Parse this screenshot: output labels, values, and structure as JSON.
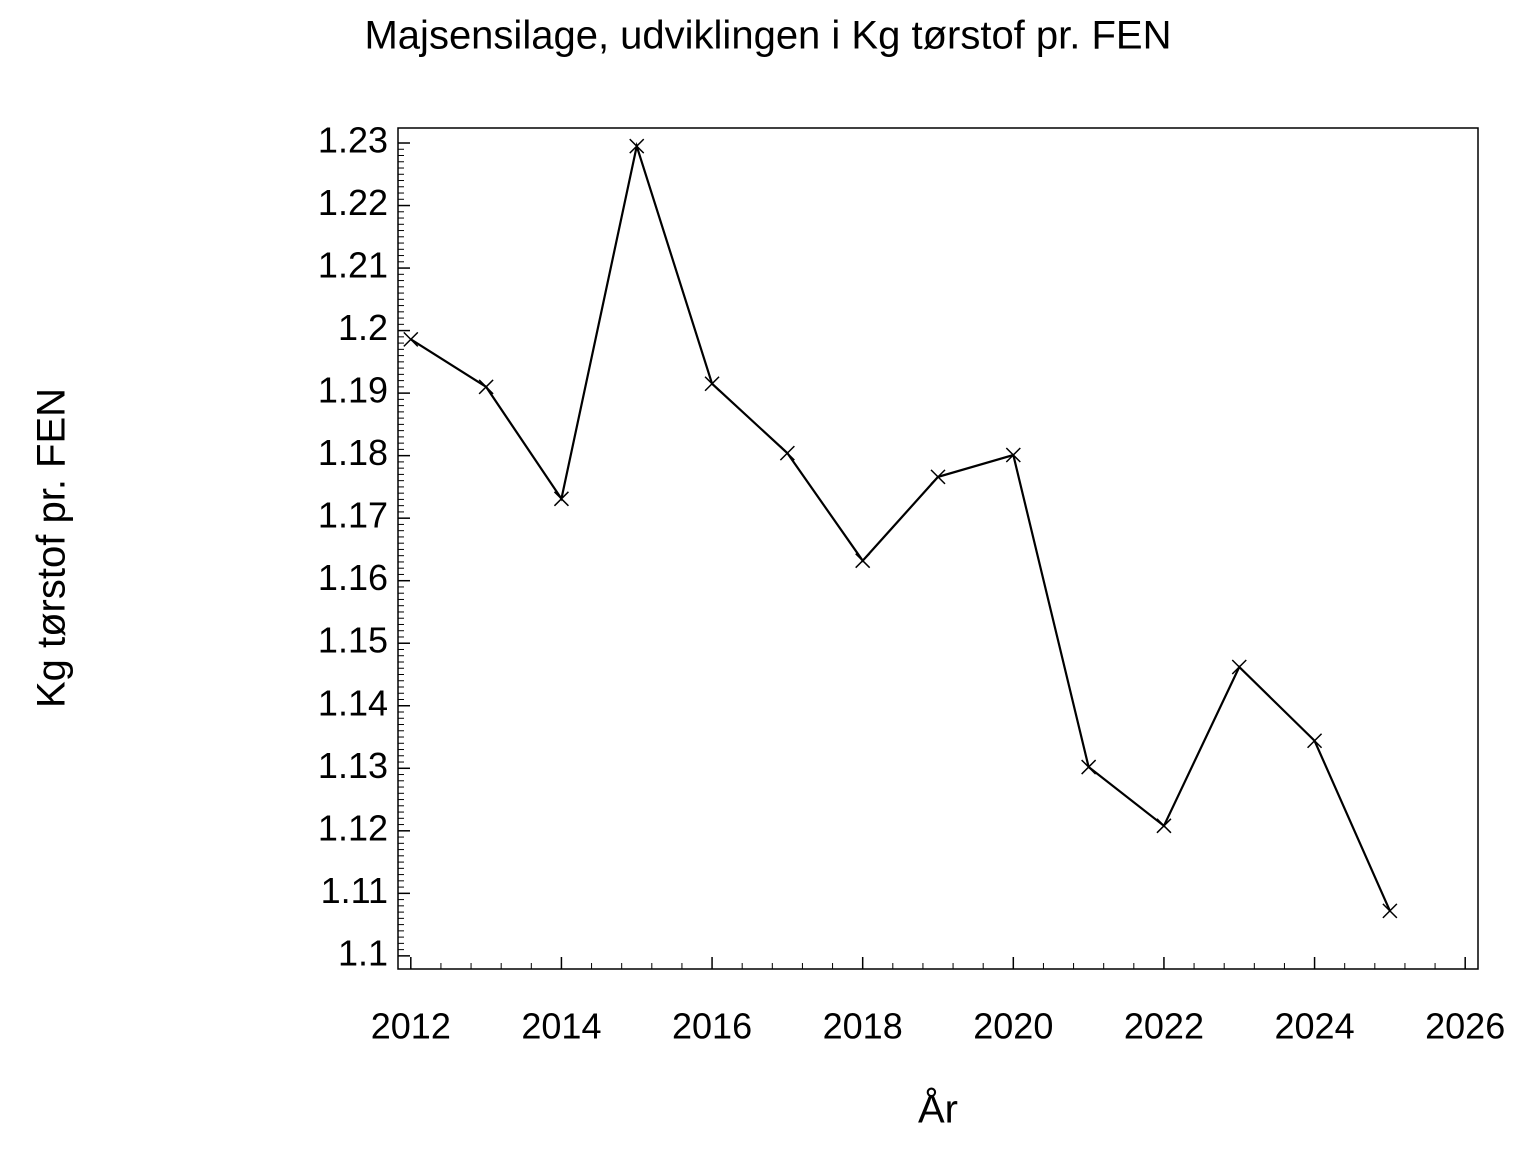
{
  "chart_data": {
    "type": "line",
    "title": "Majsensilage,  udviklingen  i  Kg  tørstof  pr.  FEN",
    "x_label": "År",
    "y_label": "Kg  tørstof  pr.  FEN",
    "x": [
      2012,
      2013,
      2014,
      2015,
      2016,
      2017,
      2018,
      2019,
      2020,
      2021,
      2022,
      2023,
      2024,
      2025
    ],
    "series": [
      {
        "name": "Kg tørstof pr. FEN",
        "color": "#000000",
        "values": [
          1.1986,
          1.191,
          1.1731,
          1.2295,
          1.1915,
          1.1804,
          1.1632,
          1.1766,
          1.1801,
          1.1302,
          1.1208,
          1.1462,
          1.1344,
          1.1072
        ]
      }
    ],
    "xlim": [
      2011.83,
      2026.17
    ],
    "xticks": [
      2012,
      2014,
      2016,
      2018,
      2020,
      2022,
      2024,
      2026
    ],
    "ylim": [
      1.0979,
      1.2324
    ],
    "yticks": [
      {
        "value": 1.1,
        "label": "1.1"
      },
      1.11,
      1.12,
      1.13,
      1.14,
      1.15,
      1.16,
      1.17,
      1.18,
      1.19,
      {
        "value": 1.2,
        "label": "1.2"
      },
      1.21,
      1.22,
      1.23
    ]
  }
}
